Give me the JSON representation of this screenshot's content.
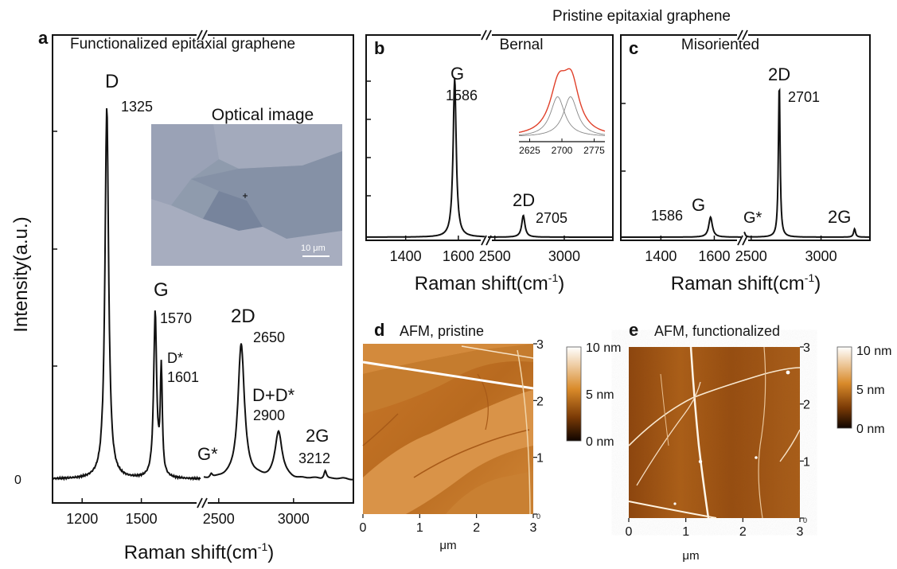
{
  "figure": {
    "pristine_header": "Pristine epitaxial graphene"
  },
  "chart_data": [
    {
      "panel": "a",
      "type": "line",
      "title": "Functionalized epitaxial graphene",
      "xlabel": "Raman shift(cm",
      "xlabel_sup": "-1",
      "xlabel_close": ")",
      "ylabel": "Intensity(a.u.)",
      "y_zero_label": "0",
      "broken_axis": true,
      "segments": [
        {
          "xlim": [
            1050,
            1800
          ],
          "ticks": [
            "1200",
            "1500"
          ]
        },
        {
          "xlim": [
            2400,
            3400
          ],
          "ticks": [
            "2500",
            "3000"
          ]
        }
      ],
      "peaks": [
        {
          "name": "D",
          "position": "1325",
          "x": 1325,
          "height": 0.88
        },
        {
          "name": "G",
          "position": "1570",
          "x": 1570,
          "height": 0.39
        },
        {
          "name": "D*",
          "position": "1601",
          "x": 1601,
          "height": 0.25
        },
        {
          "name": "G*",
          "position": "",
          "x": 2450,
          "height": 0.01
        },
        {
          "name": "2D",
          "position": "2650",
          "x": 2650,
          "height": 0.32
        },
        {
          "name": "D+D*",
          "position": "2900",
          "x": 2900,
          "height": 0.11
        },
        {
          "name": "2G",
          "position": "3212",
          "x": 3212,
          "height": 0.02
        }
      ],
      "inset": {
        "title": "Optical image",
        "scalebar_label": "10 μm"
      }
    },
    {
      "panel": "b",
      "type": "line",
      "title": "Bernal",
      "xlabel": "Raman shift(cm",
      "xlabel_sup": "-1",
      "xlabel_close": ")",
      "broken_axis": true,
      "segments": [
        {
          "xlim": [
            1250,
            1700
          ],
          "ticks": [
            "1400",
            "1600"
          ]
        },
        {
          "xlim": [
            2450,
            3350
          ],
          "ticks": [
            "2500",
            "3000"
          ]
        }
      ],
      "peaks": [
        {
          "name": "G",
          "position": "1586",
          "x": 1586,
          "height": 0.95
        },
        {
          "name": "2D",
          "position": "2705",
          "x": 2705,
          "height": 0.13
        }
      ],
      "inset": {
        "type": "line",
        "x_ticks": [
          "2625",
          "2700",
          "2775"
        ],
        "xlim": [
          2600,
          2800
        ],
        "series": [
          {
            "name": "",
            "color": "#e0402a",
            "centers": [
              2705
            ],
            "height": 1.0
          },
          {
            "name": "",
            "color": "#888888",
            "centers": [
              2690
            ],
            "height": 0.6
          },
          {
            "name": "",
            "color": "#888888",
            "centers": [
              2720
            ],
            "height": 0.6
          }
        ]
      }
    },
    {
      "panel": "c",
      "type": "line",
      "title": "Misoriented",
      "xlabel": "Raman shift(cm",
      "xlabel_sup": "-1",
      "xlabel_close": ")",
      "broken_axis": true,
      "segments": [
        {
          "xlim": [
            1250,
            1700
          ],
          "ticks": [
            "1400",
            "1600"
          ]
        },
        {
          "xlim": [
            2450,
            3350
          ],
          "ticks": [
            "2500",
            "3000"
          ]
        }
      ],
      "peaks": [
        {
          "name": "G",
          "position": "1586",
          "x": 1586,
          "height": 0.12
        },
        {
          "name": "G*",
          "position": "",
          "x": 2450,
          "height": 0.03
        },
        {
          "name": "2D",
          "position": "2701",
          "x": 2701,
          "height": 0.93
        },
        {
          "name": "2G",
          "position": "",
          "x": 3240,
          "height": 0.05
        }
      ]
    },
    {
      "panel": "d",
      "type": "heatmap",
      "title": "AFM, pristine",
      "xlabel": "μm",
      "x_ticks": [
        "0",
        "1",
        "2",
        "3"
      ],
      "y_ticks": [
        "0",
        "1",
        "2",
        "3"
      ],
      "colorbar": [
        "10 nm",
        "5 nm",
        "0 nm"
      ],
      "colors": [
        "#1a0a00",
        "#c06010",
        "#ffffff"
      ]
    },
    {
      "panel": "e",
      "type": "heatmap",
      "title": "AFM, functionalized",
      "xlabel": "μm",
      "x_ticks": [
        "0",
        "1",
        "2",
        "3"
      ],
      "y_ticks": [
        "0",
        "1",
        "2",
        "3"
      ],
      "colorbar": [
        "10 nm",
        "5 nm",
        "0 nm"
      ],
      "colors": [
        "#1a0a00",
        "#c06010",
        "#ffffff"
      ]
    }
  ]
}
